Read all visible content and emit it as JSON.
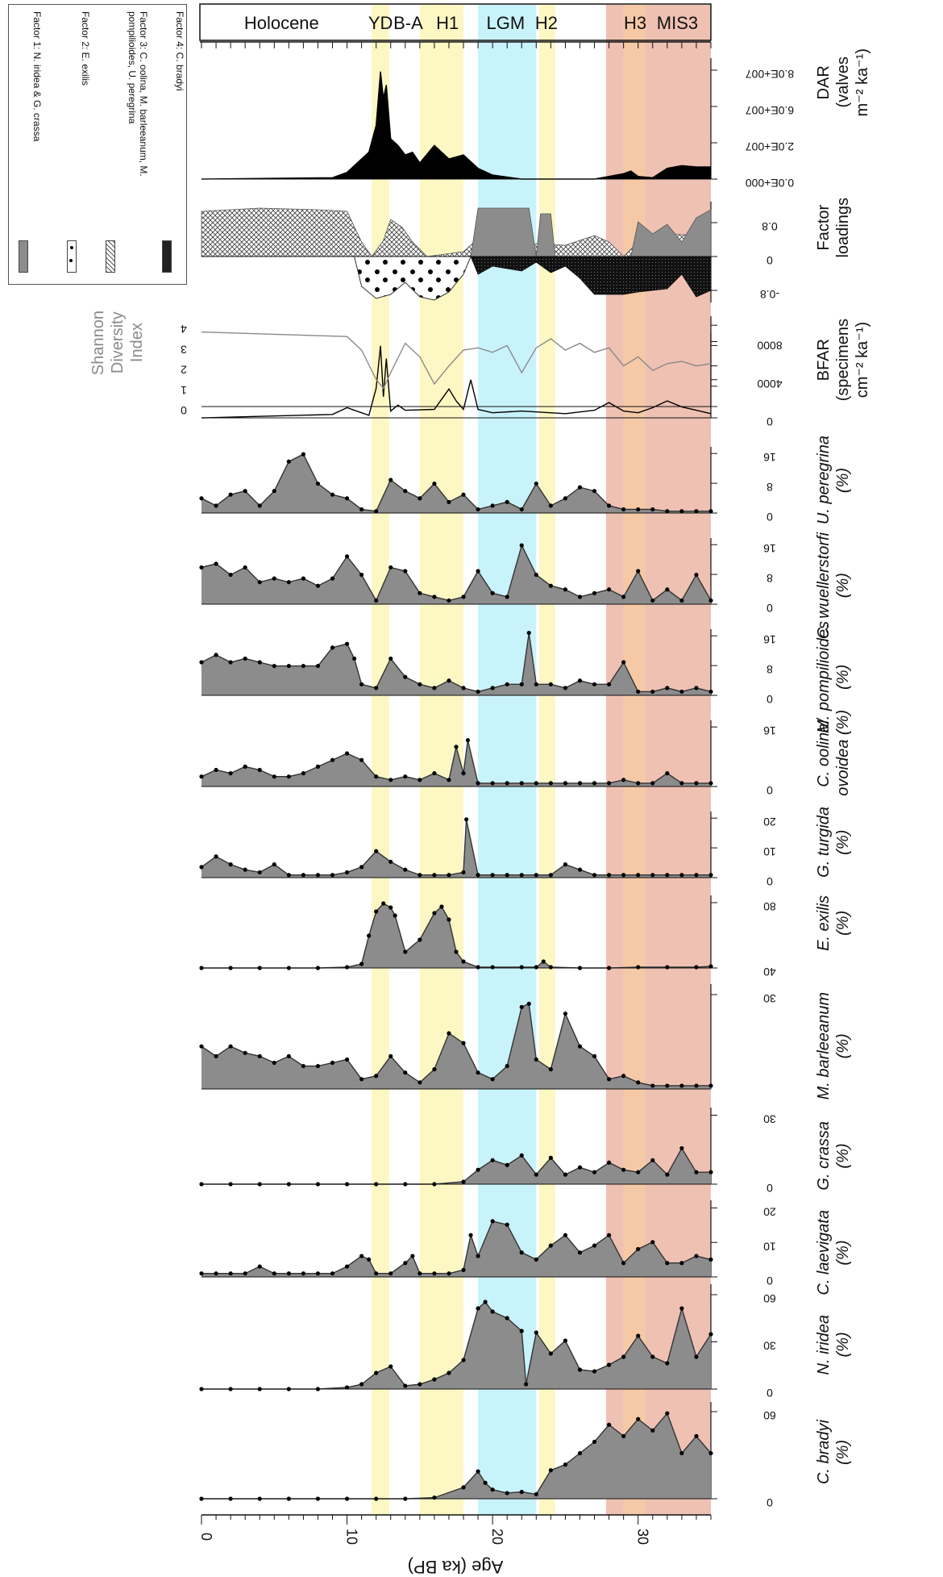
{
  "chart_data": {
    "type": "area",
    "xlabel": "Age (ka BP)",
    "x_ticks": [
      "0",
      "10",
      "20",
      "30"
    ],
    "x_range": [
      0,
      35
    ],
    "periods": [
      {
        "label": "Holocene",
        "start": 0,
        "end": 11.7,
        "color": "#ffffff"
      },
      {
        "label": "YD",
        "start": 11.7,
        "end": 12.9,
        "color": "#fdf7c3"
      },
      {
        "label": "B-A",
        "start": 12.9,
        "end": 14.7,
        "color": "#ffffff"
      },
      {
        "label": "H1",
        "start": 15.0,
        "end": 18.0,
        "color": "#fdf7c3"
      },
      {
        "label": "LGM",
        "start": 19.0,
        "end": 23.0,
        "color": "#c9f3fb"
      },
      {
        "label": "H2",
        "start": 23.2,
        "end": 24.3,
        "color": "#fdf7c3"
      },
      {
        "label": "H3",
        "start": 29.0,
        "end": 30.5,
        "color": "#f6c9a6"
      },
      {
        "label": "MIS3",
        "start": 27.8,
        "end": 35.0,
        "color": "#efc1b2"
      }
    ],
    "legend": [
      {
        "label": "Factor 1: N. iridea & G. crassa",
        "pattern": "solid-gray"
      },
      {
        "label": "Factor 2: E. exilis",
        "pattern": "dots"
      },
      {
        "label": "Factor 3: C. oolina, M. barleeanum, M. pompilioides, U. peregrina",
        "pattern": "crosshatch"
      },
      {
        "label": "Factor 4: C. bradyi",
        "pattern": "dark-stipple"
      }
    ],
    "panels": [
      {
        "name": "DAR",
        "label_lines": [
          "DAR",
          "(valves",
          "m⁻² ka⁻¹)"
        ],
        "tick_labels": [
          "0.0E+000",
          "2.0E+007",
          "6.0E+007",
          "8.0E+007"
        ],
        "color": "#000000",
        "x": [
          0,
          9,
          10,
          11,
          11.5,
          12,
          12.3,
          12.5,
          12.7,
          13,
          13.5,
          14,
          14.5,
          15,
          16,
          17,
          18,
          19,
          20,
          22,
          27,
          29,
          29.5,
          30,
          31,
          32,
          33,
          34,
          35
        ],
        "values": [
          0,
          0.1,
          0.5,
          1.5,
          2,
          4,
          8,
          6,
          7,
          3,
          2.5,
          1.8,
          2,
          1.2,
          2.5,
          1.5,
          1.8,
          0.8,
          0.3,
          0,
          0,
          0.4,
          0.6,
          0.2,
          0.1,
          0.8,
          1.0,
          0.9,
          0.9
        ]
      },
      {
        "name": "Factor loadings",
        "label_lines": [
          "Factor",
          "loadings"
        ],
        "tick_labels": [
          "-0.8",
          "0",
          "0.8"
        ],
        "note": "stacked factor loading curves"
      },
      {
        "name": "BFAR",
        "label_lines": [
          "BFAR",
          "(specimens",
          "cm⁻² ka⁻¹)"
        ],
        "tick_labels": [
          "0",
          "4000",
          "8000"
        ],
        "x": [
          0,
          9,
          10,
          11,
          11.5,
          12,
          12.3,
          12.5,
          12.7,
          13,
          13.5,
          14,
          16,
          17,
          17.5,
          18,
          18.5,
          19,
          20,
          22,
          25,
          27,
          28,
          29,
          30,
          31,
          32,
          33,
          34,
          35
        ],
        "values": [
          0,
          400,
          1200,
          600,
          300,
          3500,
          8500,
          2500,
          7000,
          800,
          1500,
          900,
          1000,
          3400,
          2000,
          1000,
          4500,
          1000,
          600,
          800,
          500,
          900,
          1800,
          800,
          600,
          1200,
          2000,
          1300,
          900,
          500
        ]
      },
      {
        "name": "Shannon Diversity Index",
        "label_lines": [
          "Shannon",
          "Diversity",
          "Index"
        ],
        "tick_labels": [
          "0",
          "1",
          "2",
          "3",
          "4"
        ],
        "x": [
          0,
          5,
          10,
          11,
          12,
          12.5,
          13,
          14,
          15,
          16,
          17,
          18,
          19,
          20,
          21,
          22,
          23,
          24,
          25,
          26,
          27,
          28,
          29,
          30,
          31,
          32,
          33,
          34,
          35
        ],
        "values": [
          3.3,
          3.2,
          3.1,
          2.5,
          1.2,
          0.8,
          1.5,
          2.8,
          2.2,
          1.0,
          1.8,
          2.5,
          2.6,
          2.4,
          2.7,
          1.5,
          2.6,
          3.0,
          2.5,
          2.8,
          2.4,
          2.6,
          1.8,
          2.2,
          1.6,
          1.9,
          2.0,
          1.8,
          1.9
        ]
      },
      {
        "name": "U. peregrina",
        "label_lines": [
          "U. peregrina",
          "(%)"
        ],
        "tick_labels": [
          "0",
          "8",
          "16"
        ],
        "ymax": 18,
        "x": [
          0,
          1,
          2,
          3,
          4,
          5,
          6,
          7,
          8,
          9,
          10,
          11,
          12,
          13,
          14,
          15,
          16,
          17,
          18,
          19,
          20,
          21,
          22,
          23,
          24,
          25,
          26,
          27,
          28,
          29,
          30,
          31,
          32,
          33,
          34,
          35
        ],
        "values": [
          4,
          2,
          5,
          6,
          2,
          6,
          14,
          16,
          8,
          5,
          4,
          1,
          0.5,
          9,
          6,
          4,
          8,
          3,
          5,
          1,
          2,
          3,
          1,
          8,
          2,
          4,
          7,
          6,
          2,
          1,
          1,
          1,
          0.5,
          0.5,
          0.5,
          0.5
        ]
      },
      {
        "name": "C. wuellerstorfi",
        "label_lines": [
          "C. wuellerstorfi",
          "(%)"
        ],
        "tick_labels": [
          "0",
          "8",
          "16"
        ],
        "ymax": 18,
        "x": [
          0,
          1,
          2,
          3,
          4,
          5,
          6,
          7,
          8,
          9,
          10,
          11,
          12,
          13,
          14,
          15,
          16,
          17,
          18,
          19,
          20,
          21,
          22,
          23,
          24,
          25,
          26,
          27,
          28,
          29,
          30,
          31,
          32,
          33,
          34,
          35
        ],
        "values": [
          10,
          11,
          8,
          10,
          6,
          7,
          6,
          7,
          5,
          7,
          13,
          8,
          1,
          10,
          9,
          3,
          2,
          1,
          2,
          9,
          3,
          2,
          16,
          8,
          5,
          4,
          2,
          3,
          4,
          2,
          9,
          1,
          4,
          1,
          8,
          1
        ]
      },
      {
        "name": "M. pompilioides",
        "label_lines": [
          "M. pompilioides",
          "(%)"
        ],
        "tick_labels": [
          "0",
          "8",
          "16"
        ],
        "ymax": 18,
        "x": [
          0,
          1,
          2,
          3,
          4,
          5,
          6,
          7,
          8,
          9,
          10,
          10.5,
          11,
          12,
          13,
          14,
          15,
          16,
          17,
          18,
          19,
          20,
          21,
          22,
          22.5,
          23,
          24,
          25,
          26,
          27,
          28,
          29,
          30,
          31,
          32,
          33,
          34,
          35
        ],
        "values": [
          9,
          11,
          9,
          10,
          9,
          8,
          8,
          8,
          8,
          13,
          14,
          10,
          3,
          2,
          10,
          5,
          3,
          2,
          4,
          2,
          1,
          2,
          3,
          3,
          17,
          3,
          3,
          2,
          4,
          3,
          3,
          9,
          1,
          1,
          2,
          1,
          2,
          1
        ]
      },
      {
        "name": "C. oolina/ ovoidea",
        "label_lines": [
          "C. oolina/",
          "ovoidea (%)"
        ],
        "tick_labels": [
          "0",
          "16"
        ],
        "ymax": 20,
        "x": [
          0,
          1,
          2,
          3,
          4,
          5,
          6,
          7,
          8,
          9,
          10,
          11,
          12,
          13,
          14,
          15,
          16,
          17,
          17.5,
          18,
          18.3,
          19,
          20,
          21,
          22,
          23,
          24,
          25,
          26,
          27,
          28,
          29,
          30,
          31,
          32,
          33,
          34,
          35
        ],
        "values": [
          3,
          5,
          4,
          6,
          5,
          3,
          3,
          4,
          6,
          8,
          10,
          8,
          3,
          2,
          3,
          2,
          4,
          2,
          12,
          4,
          14,
          1,
          1,
          1,
          1,
          1,
          1,
          1,
          1,
          1,
          1,
          2,
          1,
          1,
          4,
          1,
          1,
          1
        ]
      },
      {
        "name": "G. turgida",
        "label_lines": [
          "G. turgida",
          "(%)"
        ],
        "tick_labels": [
          "0",
          "10",
          "20"
        ],
        "ymax": 25,
        "x": [
          0,
          1,
          2,
          3,
          4,
          5,
          6,
          7,
          8,
          9,
          10,
          11,
          12,
          13,
          14,
          15,
          16,
          17,
          18,
          18.2,
          19,
          20,
          21,
          22,
          23,
          24,
          25,
          26,
          27,
          28,
          29,
          30,
          31,
          32,
          33,
          34,
          35
        ],
        "values": [
          4,
          8,
          5,
          3,
          2,
          5,
          1,
          1,
          1,
          1,
          2,
          4,
          10,
          6,
          3,
          1,
          1,
          1,
          2,
          22,
          1,
          1,
          1,
          1,
          1,
          1,
          5,
          3,
          1,
          1,
          1,
          1,
          1,
          1,
          1,
          1,
          1
        ]
      },
      {
        "name": "E. exilis",
        "label_lines": [
          "E. exilis",
          "(%)"
        ],
        "tick_labels": [
          "40",
          "80"
        ],
        "ymax": 90,
        "x": [
          0,
          2,
          4,
          6,
          8,
          10,
          11,
          11.5,
          12,
          12.5,
          13,
          13.3,
          14,
          15,
          16,
          16.5,
          17,
          17.5,
          18,
          19,
          20,
          22,
          23,
          23.5,
          24,
          26,
          28,
          30,
          32,
          34,
          35
        ],
        "values": [
          0,
          0,
          0,
          0,
          0,
          1,
          5,
          40,
          70,
          80,
          75,
          65,
          20,
          35,
          68,
          76,
          60,
          20,
          8,
          1,
          1,
          1,
          1,
          8,
          1,
          0,
          0,
          1,
          1,
          1,
          2
        ]
      },
      {
        "name": "M. barleeanum",
        "label_lines": [
          "M. barleeanum",
          "(%)"
        ],
        "tick_labels": [
          "30"
        ],
        "ymax": 32,
        "x": [
          0,
          1,
          2,
          3,
          4,
          5,
          6,
          7,
          8,
          9,
          10,
          11,
          12,
          13,
          14,
          15,
          16,
          17,
          18,
          19,
          20,
          21,
          22,
          22.5,
          23,
          24,
          25,
          26,
          27,
          28,
          29,
          30,
          31,
          32,
          33,
          34,
          35
        ],
        "values": [
          13,
          10,
          13,
          11,
          10,
          8,
          10,
          7,
          7,
          8,
          9,
          3,
          4,
          10,
          5,
          2,
          6,
          17,
          14,
          5,
          3,
          7,
          25,
          26,
          9,
          6,
          23,
          13,
          10,
          3,
          4,
          2,
          1,
          1,
          1,
          1,
          1
        ]
      },
      {
        "name": "G. crassa",
        "label_lines": [
          "G. crassa",
          "(%)"
        ],
        "tick_labels": [
          "0",
          "30"
        ],
        "ymax": 32,
        "x": [
          0,
          2,
          4,
          6,
          8,
          10,
          12,
          14,
          16,
          18,
          19,
          20,
          21,
          22,
          23,
          24,
          25,
          26,
          27,
          28,
          29,
          30,
          31,
          32,
          33,
          34,
          35
        ],
        "values": [
          0,
          0,
          0,
          0,
          0,
          0,
          0,
          0,
          0,
          1,
          6,
          10,
          8,
          12,
          4,
          11,
          4,
          7,
          5,
          9,
          6,
          5,
          10,
          4,
          15,
          5,
          5
        ]
      },
      {
        "name": "C. laevigata",
        "label_lines": [
          "C. laevigata",
          "(%)"
        ],
        "tick_labels": [
          "0",
          "10",
          "20"
        ],
        "ymax": 22,
        "x": [
          0,
          1,
          2,
          3,
          4,
          5,
          6,
          7,
          8,
          9,
          10,
          11,
          11.5,
          12,
          13,
          14,
          14.5,
          15,
          16,
          17,
          18,
          18.5,
          19,
          20,
          21,
          22,
          23,
          24,
          25,
          26,
          27,
          28,
          29,
          30,
          31,
          32,
          33,
          34,
          35
        ],
        "values": [
          1,
          1,
          1,
          1,
          3,
          1,
          1,
          1,
          1,
          1,
          3,
          6,
          5,
          1,
          1,
          4,
          6,
          1,
          1,
          1,
          2,
          12,
          6,
          16,
          15,
          7,
          5,
          9,
          12,
          7,
          9,
          12,
          4,
          8,
          10,
          4,
          4,
          6,
          5
        ]
      },
      {
        "name": "N. iridea",
        "label_lines": [
          "N. iridea",
          "(%)"
        ],
        "tick_labels": [
          "0",
          "30",
          "60"
        ],
        "ymax": 65,
        "x": [
          0,
          2,
          4,
          6,
          8,
          10,
          11,
          12,
          13,
          14,
          15,
          16,
          17,
          18,
          19,
          19.5,
          20,
          21,
          22,
          22.3,
          23,
          24,
          25,
          26,
          27,
          28,
          29,
          30,
          31,
          32,
          33,
          34,
          35
        ],
        "values": [
          0,
          0,
          0,
          0,
          0,
          1,
          3,
          10,
          14,
          2,
          3,
          6,
          10,
          18,
          50,
          54,
          48,
          44,
          36,
          3,
          35,
          22,
          30,
          12,
          11,
          15,
          20,
          33,
          20,
          16,
          50,
          20,
          34
        ]
      },
      {
        "name": "C. bradyi",
        "label_lines": [
          "C. bradyi",
          "(%)"
        ],
        "tick_labels": [
          "0",
          "60"
        ],
        "ymax": 85,
        "x": [
          0,
          2,
          4,
          6,
          8,
          10,
          12,
          14,
          16,
          18,
          19,
          19.5,
          20,
          21,
          22,
          23,
          24,
          25,
          26,
          27,
          28,
          29,
          30,
          31,
          32,
          33,
          34,
          35
        ],
        "values": [
          0,
          0,
          0,
          0,
          0,
          0,
          0,
          0,
          1,
          10,
          24,
          14,
          8,
          5,
          6,
          4,
          25,
          30,
          40,
          50,
          65,
          55,
          70,
          60,
          75,
          40,
          55,
          40
        ]
      }
    ]
  }
}
